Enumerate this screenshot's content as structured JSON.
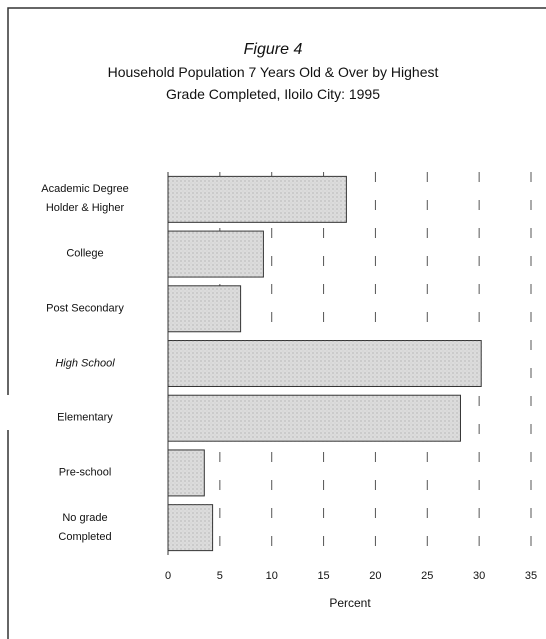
{
  "chart_data": {
    "type": "barh",
    "title": "Figure 4",
    "subtitle": "Household Population 7 Years Old & Over by Highest\nGrade Completed, Iloilo City:  1995",
    "x_label": "Percent",
    "categories": [
      "Academic Degree\nHolder & Higher",
      "College",
      "Post Secondary",
      "High School",
      "Elementary",
      "Pre-school",
      "No grade\nCompleted"
    ],
    "values": [
      17.2,
      9.2,
      7.0,
      30.2,
      28.2,
      3.5,
      4.3
    ],
    "color": "#dcdcdc",
    "xlim": [
      0,
      35
    ],
    "xticks": [
      0,
      5,
      10,
      15,
      20,
      25,
      30,
      35
    ],
    "grid": true
  }
}
